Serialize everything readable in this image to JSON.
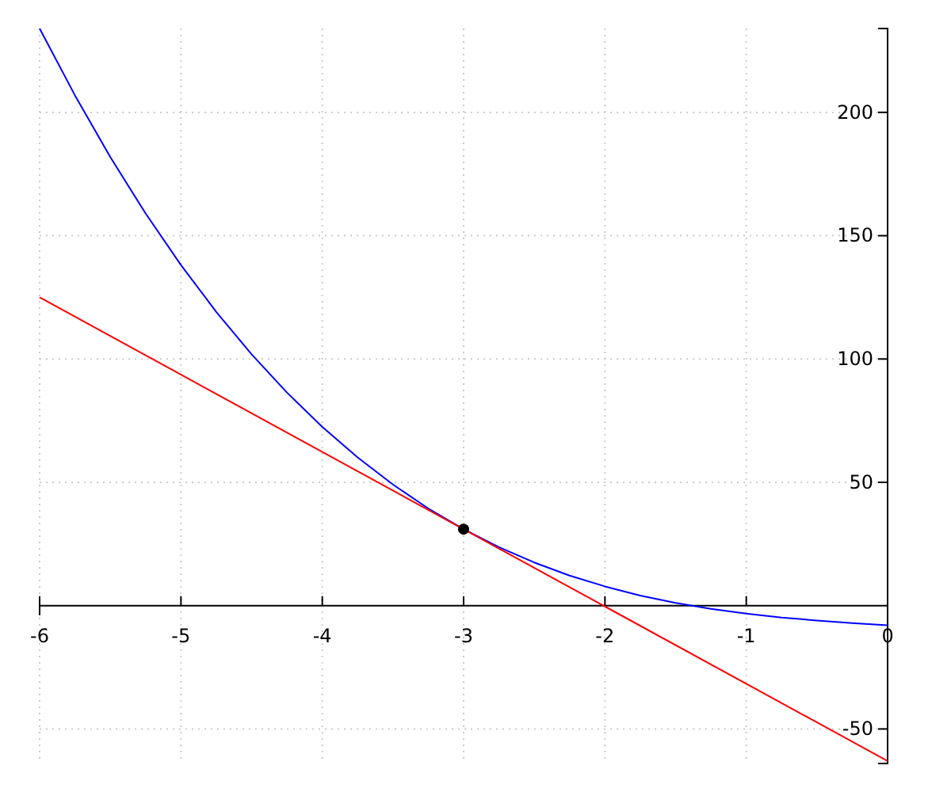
{
  "chart_data": {
    "type": "line",
    "xlim": [
      -6,
      0
    ],
    "ylim": [
      -64,
      234
    ],
    "xticks": [
      -6,
      -5,
      -4,
      -3,
      -2,
      -1,
      0
    ],
    "yticks": [
      -50,
      50,
      100,
      150,
      200
    ],
    "grid": true,
    "series": [
      {
        "color": "#0000ff",
        "x": [
          -6,
          -5.75,
          -5.5,
          -5.25,
          -5,
          -4.75,
          -4.5,
          -4.25,
          -4,
          -3.75,
          -3.5,
          -3.25,
          -3,
          -2.75,
          -2.5,
          -2.25,
          -2,
          -1.75,
          -1.5,
          -1.25,
          -1,
          -0.75,
          -0.5,
          -0.25,
          0
        ],
        "values": [
          234,
          206.9,
          181.9,
          159,
          138.1,
          119.1,
          101.9,
          86.4,
          72.5,
          60.1,
          49.1,
          39.4,
          31,
          23.7,
          17.5,
          12.2,
          7.8,
          4.1,
          1.1,
          -1.3,
          -3.2,
          -4.8,
          -6,
          -7.1,
          -8
        ]
      },
      {
        "color": "#ff0000",
        "x": [
          -6,
          0
        ],
        "values": [
          125,
          -63
        ]
      },
      {
        "type": "scatter",
        "color": "#000000",
        "x": [
          -3
        ],
        "values": [
          31
        ],
        "marker": "circle"
      }
    ]
  }
}
